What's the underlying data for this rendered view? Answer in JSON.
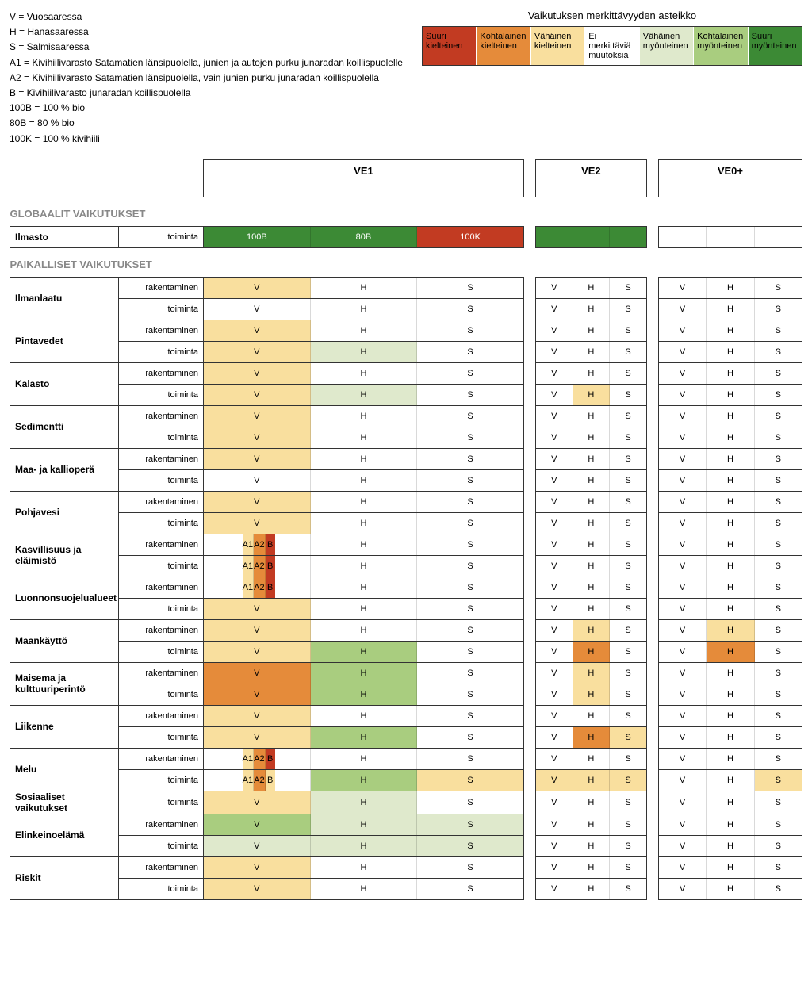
{
  "abbrev": [
    "V = Vuosaaressa",
    "H = Hanasaaressa",
    "S = Salmisaaressa",
    "A1 = Kivihiilivarasto Satamatien länsipuolella, junien ja autojen purku junaradan koillispuolelle",
    "A2 = Kivihiilivarasto Satamatien länsipuolella, vain junien purku junaradan koillispuolella",
    "B = Kivihiilivarasto junaradan koillispuolella",
    "100B = 100 % bio",
    "80B = 80 % bio",
    "100K = 100 % kivihiili"
  ],
  "scaleTitle": "Vaikutuksen merkittävyyden asteikko",
  "scale": [
    {
      "t": "Suuri kielteinen",
      "c": "#c23b22"
    },
    {
      "t": "Kohtalainen kielteinen",
      "c": "#e58b3a"
    },
    {
      "t": "Vähäinen kielteinen",
      "c": "#f9df9e"
    },
    {
      "t": "Ei merkittäviä muutoksia",
      "c": "#ffffff"
    },
    {
      "t": "Vähäinen myönteinen",
      "c": "#dfe9cc"
    },
    {
      "t": "Kohtalainen myönteinen",
      "c": "#a9cd7f"
    },
    {
      "t": "Suuri myönteinen",
      "c": "#3c8a35"
    }
  ],
  "cols": [
    "VE1",
    "VE2",
    "VE0+"
  ],
  "colors": {
    "sn": "#c23b22",
    "mn": "#e58b3a",
    "wn": "#f9df9e",
    "no": "#ffffff",
    "wp": "#dfe9cc",
    "mp": "#a9cd7f",
    "sp": "#3c8a35",
    "sp2": "#2e7d32"
  },
  "ilmasto": {
    "label": "Ilmasto",
    "phase": "toiminta",
    "ve1": [
      {
        "t": "100B",
        "c": "sp"
      },
      {
        "t": "80B",
        "c": "sp"
      },
      {
        "t": "100K",
        "c": "sn"
      }
    ],
    "ve2": [
      {
        "t": "",
        "c": "sp"
      },
      {
        "t": "",
        "c": "sp"
      },
      {
        "t": "",
        "c": "sp"
      }
    ],
    "ve0": [
      {
        "t": "",
        "c": "no"
      },
      {
        "t": "",
        "c": "no"
      },
      {
        "t": "",
        "c": "no"
      }
    ]
  },
  "sections": [
    {
      "title": "GLOBAALIT VAIKUTUKSET"
    },
    {
      "title": "PAIKALLISET VAIKUTUKSET"
    }
  ],
  "rows": [
    {
      "cat": "Ilmanlaatu",
      "phase": "rakentaminen",
      "ve1": [
        "wn",
        "no",
        "no"
      ],
      "ve2": [
        "no",
        "no",
        "no"
      ],
      "ve0": [
        "no",
        "no",
        "no"
      ]
    },
    {
      "cat": "",
      "phase": "toiminta",
      "ve1": [
        "no",
        "no",
        "no"
      ],
      "ve2": [
        "no",
        "no",
        "no"
      ],
      "ve0": [
        "no",
        "no",
        "no"
      ]
    },
    {
      "cat": "Pintavedet",
      "phase": "rakentaminen",
      "ve1": [
        "wn",
        "no",
        "no"
      ],
      "ve2": [
        "no",
        "no",
        "no"
      ],
      "ve0": [
        "no",
        "no",
        "no"
      ]
    },
    {
      "cat": "",
      "phase": "toiminta",
      "ve1": [
        "wn",
        "wp",
        "no"
      ],
      "ve2": [
        "no",
        "no",
        "no"
      ],
      "ve0": [
        "no",
        "no",
        "no"
      ]
    },
    {
      "cat": "Kalasto",
      "phase": "rakentaminen",
      "ve1": [
        "wn",
        "no",
        "no"
      ],
      "ve2": [
        "no",
        "no",
        "no"
      ],
      "ve0": [
        "no",
        "no",
        "no"
      ]
    },
    {
      "cat": "",
      "phase": "toiminta",
      "ve1": [
        "wn",
        "wp",
        "no"
      ],
      "ve2": [
        "no",
        "wn",
        "no"
      ],
      "ve0": [
        "no",
        "no",
        "no"
      ]
    },
    {
      "cat": "Sedimentti",
      "phase": "rakentaminen",
      "ve1": [
        "wn",
        "no",
        "no"
      ],
      "ve2": [
        "no",
        "no",
        "no"
      ],
      "ve0": [
        "no",
        "no",
        "no"
      ]
    },
    {
      "cat": "",
      "phase": "toiminta",
      "ve1": [
        "wn",
        "no",
        "no"
      ],
      "ve2": [
        "no",
        "no",
        "no"
      ],
      "ve0": [
        "no",
        "no",
        "no"
      ]
    },
    {
      "cat": "Maa- ja kallioperä",
      "phase": "rakentaminen",
      "ve1": [
        "wn",
        "no",
        "no"
      ],
      "ve2": [
        "no",
        "no",
        "no"
      ],
      "ve0": [
        "no",
        "no",
        "no"
      ]
    },
    {
      "cat": "",
      "phase": "toiminta",
      "ve1": [
        "no",
        "no",
        "no"
      ],
      "ve2": [
        "no",
        "no",
        "no"
      ],
      "ve0": [
        "no",
        "no",
        "no"
      ]
    },
    {
      "cat": "Pohjavesi",
      "phase": "rakentaminen",
      "ve1": [
        "wn",
        "no",
        "no"
      ],
      "ve2": [
        "no",
        "no",
        "no"
      ],
      "ve0": [
        "no",
        "no",
        "no"
      ]
    },
    {
      "cat": "",
      "phase": "toiminta",
      "ve1": [
        "wn",
        "no",
        "no"
      ],
      "ve2": [
        "no",
        "no",
        "no"
      ],
      "ve0": [
        "no",
        "no",
        "no"
      ]
    },
    {
      "cat": "Kasvillisuus ja eläimistö",
      "phase": "rakentaminen",
      "ve1": "A",
      "ve2": [
        "no",
        "no",
        "no"
      ],
      "ve0": [
        "no",
        "no",
        "no"
      ]
    },
    {
      "cat": "",
      "phase": "toiminta",
      "ve1": "A",
      "ve2": [
        "no",
        "no",
        "no"
      ],
      "ve0": [
        "no",
        "no",
        "no"
      ]
    },
    {
      "cat": "Luonnonsuojelualueet",
      "phase": "rakentaminen",
      "ve1": "A",
      "ve2": [
        "no",
        "no",
        "no"
      ],
      "ve0": [
        "no",
        "no",
        "no"
      ]
    },
    {
      "cat": "",
      "phase": "toiminta",
      "ve1": [
        "wn",
        "no",
        "no"
      ],
      "ve2": [
        "no",
        "no",
        "no"
      ],
      "ve0": [
        "no",
        "no",
        "no"
      ]
    },
    {
      "cat": "Maankäyttö",
      "phase": "rakentaminen",
      "ve1": [
        "wn",
        "no",
        "no"
      ],
      "ve2": [
        "no",
        "wn",
        "no"
      ],
      "ve0": [
        "no",
        "wn",
        "no"
      ]
    },
    {
      "cat": "",
      "phase": "toiminta",
      "ve1": [
        "wn",
        "mp",
        "no"
      ],
      "ve2": [
        "no",
        "mn",
        "no"
      ],
      "ve0": [
        "no",
        "mn",
        "no"
      ]
    },
    {
      "cat": "Maisema ja kulttuuriperintö",
      "phase": "rakentaminen",
      "ve1": [
        "mn",
        "mp",
        "no"
      ],
      "ve2": [
        "no",
        "wn",
        "no"
      ],
      "ve0": [
        "no",
        "no",
        "no"
      ]
    },
    {
      "cat": "",
      "phase": "toiminta",
      "ve1": [
        "mn",
        "mp",
        "no"
      ],
      "ve2": [
        "no",
        "wn",
        "no"
      ],
      "ve0": [
        "no",
        "no",
        "no"
      ]
    },
    {
      "cat": "Liikenne",
      "phase": "rakentaminen",
      "ve1": [
        "wn",
        "no",
        "no"
      ],
      "ve2": [
        "no",
        "no",
        "no"
      ],
      "ve0": [
        "no",
        "no",
        "no"
      ]
    },
    {
      "cat": "",
      "phase": "toiminta",
      "ve1": [
        "wn",
        "mp",
        "no"
      ],
      "ve2": [
        "no",
        "mn",
        "wn"
      ],
      "ve0": [
        "no",
        "no",
        "no"
      ]
    },
    {
      "cat": "Melu",
      "phase": "rakentaminen",
      "ve1": "A",
      "ve2": [
        "no",
        "no",
        "no"
      ],
      "ve0": [
        "no",
        "no",
        "no"
      ]
    },
    {
      "cat": "",
      "phase": "toiminta",
      "ve1": "A2",
      "ve2": [
        "wn",
        "wn",
        "wn"
      ],
      "ve0": [
        "no",
        "no",
        "wn"
      ]
    },
    {
      "cat": "Sosiaaliset vaikutukset",
      "phase": "toiminta",
      "single": true,
      "ve1": [
        "wn",
        "wp",
        "no"
      ],
      "ve2": [
        "no",
        "no",
        "no"
      ],
      "ve0": [
        "no",
        "no",
        "no"
      ]
    },
    {
      "cat": "Elinkeinoelämä",
      "phase": "rakentaminen",
      "ve1": [
        "mp",
        "wp",
        "wp"
      ],
      "ve2": [
        "no",
        "no",
        "no"
      ],
      "ve0": [
        "no",
        "no",
        "no"
      ]
    },
    {
      "cat": "",
      "phase": "toiminta",
      "ve1": [
        "wp",
        "wp",
        "wp"
      ],
      "ve2": [
        "no",
        "no",
        "no"
      ],
      "ve0": [
        "no",
        "no",
        "no"
      ]
    },
    {
      "cat": "Riskit",
      "phase": "rakentaminen",
      "ve1": [
        "wn",
        "no",
        "no"
      ],
      "ve2": [
        "no",
        "no",
        "no"
      ],
      "ve0": [
        "no",
        "no",
        "no"
      ]
    },
    {
      "cat": "",
      "phase": "toiminta",
      "ve1": [
        "wn",
        "no",
        "no"
      ],
      "ve2": [
        "no",
        "no",
        "no"
      ],
      "ve0": [
        "no",
        "no",
        "no"
      ]
    }
  ],
  "vhs": [
    "V",
    "H",
    "S"
  ],
  "A_split": {
    "cells": [
      {
        "t": "A1",
        "c": "wn"
      },
      {
        "t": "A2",
        "c": "mn"
      },
      {
        "t": "B",
        "c": "sn"
      }
    ],
    "rest": [
      "no",
      "no"
    ]
  },
  "A2_split": {
    "cells": [
      {
        "t": "A1",
        "c": "wn"
      },
      {
        "t": "A2",
        "c": "mn"
      },
      {
        "t": "B",
        "c": "wn"
      }
    ],
    "rest": [
      "mp",
      "wn"
    ]
  }
}
